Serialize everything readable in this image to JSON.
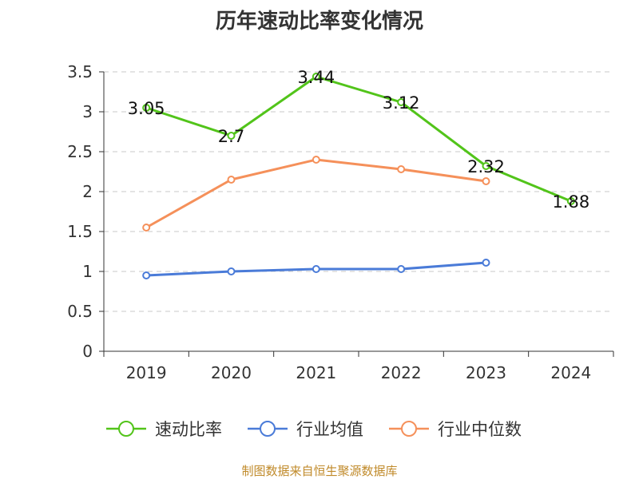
{
  "chart_data": {
    "type": "line",
    "title": "历年速动比率变化情况",
    "categories": [
      "2019",
      "2020",
      "2021",
      "2022",
      "2023",
      "2024"
    ],
    "ylim": [
      0,
      3.5
    ],
    "yticks": [
      "0",
      "0.5",
      "1",
      "1.5",
      "2",
      "2.5",
      "3",
      "3.5"
    ],
    "grid": true,
    "legend_position": "bottom",
    "series": [
      {
        "name": "速动比率",
        "color": "#52c41a",
        "values": [
          3.05,
          2.7,
          3.44,
          3.12,
          2.32,
          1.88
        ],
        "labels": [
          "3.05",
          "2.7",
          "3.44",
          "3.12",
          "2.32",
          "1.88"
        ]
      },
      {
        "name": "行业均值",
        "color": "#4a7bd8",
        "values": [
          0.95,
          1.0,
          1.03,
          1.03,
          1.11,
          null
        ]
      },
      {
        "name": "行业中位数",
        "color": "#f5905a",
        "values": [
          1.55,
          2.15,
          2.4,
          2.28,
          2.13,
          null
        ]
      }
    ]
  },
  "source_note": "制图数据来自恒生聚源数据库"
}
